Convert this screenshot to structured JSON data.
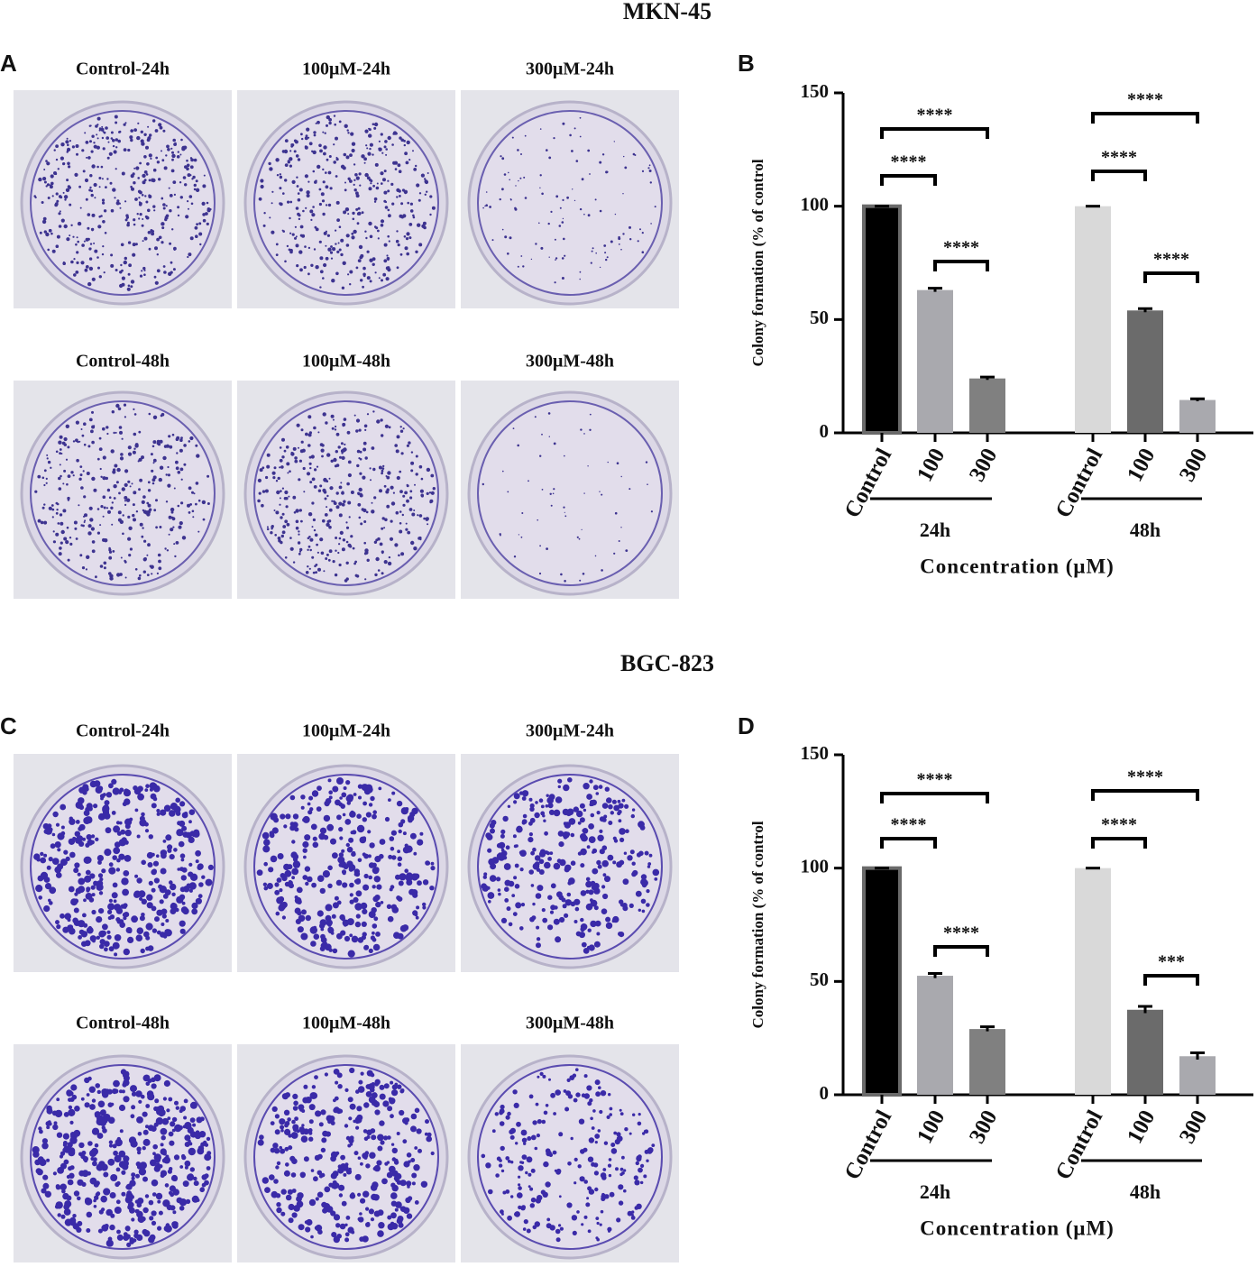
{
  "sections": [
    {
      "title": "MKN-45",
      "photo_letter": "A",
      "chart_letter": "B",
      "photo_labels": [
        "Control-24h",
        "100μM-24h",
        "300μM-24h",
        "Control-48h",
        "100μM-48h",
        "300μM-48h"
      ]
    },
    {
      "title": "BGC-823",
      "photo_letter": "C",
      "chart_letter": "D",
      "photo_labels": [
        "Control-24h",
        "100μM-24h",
        "300μM-24h",
        "Control-48h",
        "100μM-48h",
        "300μM-48h"
      ]
    }
  ],
  "chart_data": [
    {
      "type": "bar",
      "ylabel": "Colony formation (% of control",
      "xlabel": "Concentration (μM)",
      "categories": [
        "Control",
        "100",
        "300",
        "Control",
        "100",
        "300"
      ],
      "groups": [
        "24h",
        "48h"
      ],
      "values": [
        100,
        63,
        24,
        100,
        54,
        14.5
      ],
      "errors": [
        0,
        0.8,
        0.6,
        0,
        0.8,
        0.5
      ],
      "colors": [
        "#000000",
        "#a9a9ae",
        "#808080",
        "#d9d9d9",
        "#6b6b6b",
        "#a9a9ae"
      ],
      "ylim": [
        0,
        150
      ],
      "yticks": [
        0,
        50,
        100,
        150
      ],
      "significance": [
        {
          "from": 0,
          "to": 2,
          "label": "****"
        },
        {
          "from": 0,
          "to": 1,
          "label": "****"
        },
        {
          "from": 1,
          "to": 2,
          "label": "****"
        },
        {
          "from": 3,
          "to": 5,
          "label": "****"
        },
        {
          "from": 3,
          "to": 4,
          "label": "****"
        },
        {
          "from": 4,
          "to": 5,
          "label": "****"
        }
      ]
    },
    {
      "type": "bar",
      "ylabel": "Colony formation (% of control",
      "xlabel": "Concentration (μM)",
      "categories": [
        "Control",
        "100",
        "300",
        "Control",
        "100",
        "300"
      ],
      "groups": [
        "24h",
        "48h"
      ],
      "values": [
        100,
        52.5,
        29,
        100,
        37.5,
        17
      ],
      "errors": [
        0,
        1,
        1,
        0,
        1.5,
        1.5
      ],
      "colors": [
        "#000000",
        "#a9a9ae",
        "#808080",
        "#d9d9d9",
        "#6b6b6b",
        "#a9a9ae"
      ],
      "ylim": [
        0,
        150
      ],
      "yticks": [
        0,
        50,
        100,
        150
      ],
      "significance": [
        {
          "from": 0,
          "to": 2,
          "label": "****"
        },
        {
          "from": 0,
          "to": 1,
          "label": "****"
        },
        {
          "from": 1,
          "to": 2,
          "label": "****"
        },
        {
          "from": 3,
          "to": 5,
          "label": "****"
        },
        {
          "from": 3,
          "to": 4,
          "label": "****"
        },
        {
          "from": 4,
          "to": 5,
          "label": "***"
        }
      ]
    }
  ]
}
